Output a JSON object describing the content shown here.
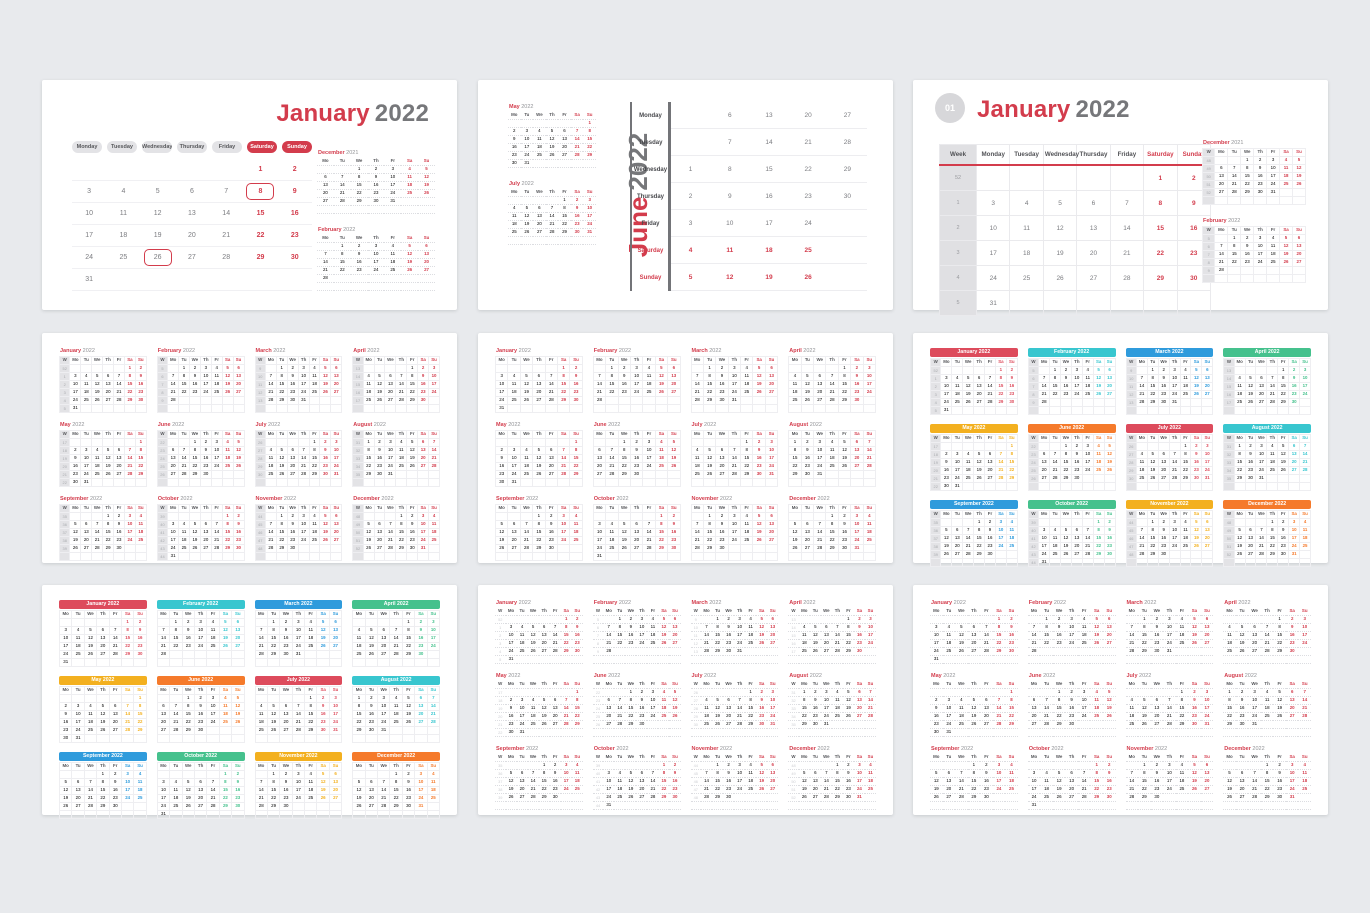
{
  "page": {
    "background": "#e8eaed",
    "card_background": "#ffffff"
  },
  "colors": {
    "accent": "#d33c4c",
    "title_year_gray": "#76777a",
    "day_text": "#7b7c80",
    "weekday_header": "#55565a",
    "week_number": "#a9abaf",
    "pill_bg": "#e3e3e6",
    "week_col_bg": "#e3e3e6",
    "badge_bg": "#d7d7da",
    "border": "#eeeef1",
    "divider_dark": "#737478"
  },
  "month_colors": [
    "#dd4b5c",
    "#38c6cf",
    "#2f9bdc",
    "#45c18d",
    "#f3b01f",
    "#f57a2b",
    "#dd4b5c",
    "#38c6cf",
    "#2f9bdc",
    "#45c18d",
    "#f3b01f",
    "#f57a2b"
  ],
  "weekdays_full": [
    "Monday",
    "Tuesday",
    "Wednesday",
    "Thursday",
    "Friday",
    "Saturday",
    "Sunday"
  ],
  "weekdays_short": [
    "Mo",
    "Tu",
    "We",
    "Th",
    "Fr",
    "Sa",
    "Su"
  ],
  "week_label_short": "W",
  "week_label_full": "Week",
  "year": "2022",
  "months": [
    {
      "name": "January",
      "days": 31,
      "start": 5,
      "weeks": [
        52,
        1,
        2,
        3,
        4,
        5
      ]
    },
    {
      "name": "February",
      "days": 28,
      "start": 1,
      "weeks": [
        5,
        6,
        7,
        8,
        9
      ]
    },
    {
      "name": "March",
      "days": 31,
      "start": 1,
      "weeks": [
        9,
        10,
        11,
        12,
        13
      ]
    },
    {
      "name": "April",
      "days": 30,
      "start": 4,
      "weeks": [
        13,
        14,
        15,
        16,
        17
      ]
    },
    {
      "name": "May",
      "days": 31,
      "start": 6,
      "weeks": [
        17,
        18,
        19,
        20,
        21,
        22
      ]
    },
    {
      "name": "June",
      "days": 30,
      "start": 2,
      "weeks": [
        22,
        23,
        24,
        25,
        26
      ]
    },
    {
      "name": "July",
      "days": 31,
      "start": 4,
      "weeks": [
        26,
        27,
        28,
        29,
        30
      ]
    },
    {
      "name": "August",
      "days": 31,
      "start": 0,
      "weeks": [
        31,
        32,
        33,
        34,
        35
      ]
    },
    {
      "name": "September",
      "days": 30,
      "start": 3,
      "weeks": [
        35,
        36,
        37,
        38,
        39
      ]
    },
    {
      "name": "October",
      "days": 31,
      "start": 5,
      "weeks": [
        39,
        40,
        41,
        42,
        43,
        44
      ]
    },
    {
      "name": "November",
      "days": 30,
      "start": 1,
      "weeks": [
        44,
        45,
        46,
        47,
        48
      ]
    },
    {
      "name": "December",
      "days": 31,
      "start": 3,
      "weeks": [
        48,
        49,
        50,
        51,
        52
      ]
    }
  ],
  "dec_2021": {
    "name": "December",
    "year": "2021",
    "days": 31,
    "start": 2,
    "weeks": [
      48,
      49,
      50,
      51,
      52
    ]
  },
  "cards": {
    "monthly_pills": {
      "month": "January",
      "year": "2022",
      "highlighted_days": [
        8,
        26
      ],
      "side_months": [
        "dec_2021",
        "February"
      ]
    },
    "monthly_rows": {
      "month": "June",
      "year": "2022",
      "side_months": [
        "May",
        "July"
      ]
    },
    "monthly_weeks": {
      "badge": "01",
      "month": "January",
      "year": "2022",
      "side_months": [
        "dec_2021",
        "February"
      ]
    }
  },
  "year_cards": [
    {
      "id": "card4",
      "week_col": "gray",
      "frame": "border",
      "colored": false
    },
    {
      "id": "card5",
      "week_col": null,
      "frame": "border",
      "colored": false
    },
    {
      "id": "card6",
      "week_col": "gray",
      "frame": "border",
      "colored": true
    },
    {
      "id": "card7",
      "week_col": null,
      "frame": "border",
      "colored": true
    },
    {
      "id": "card8",
      "week_col": "light",
      "frame": "lines",
      "colored": false
    },
    {
      "id": "card9",
      "week_col": null,
      "frame": "lines",
      "colored": false
    }
  ]
}
